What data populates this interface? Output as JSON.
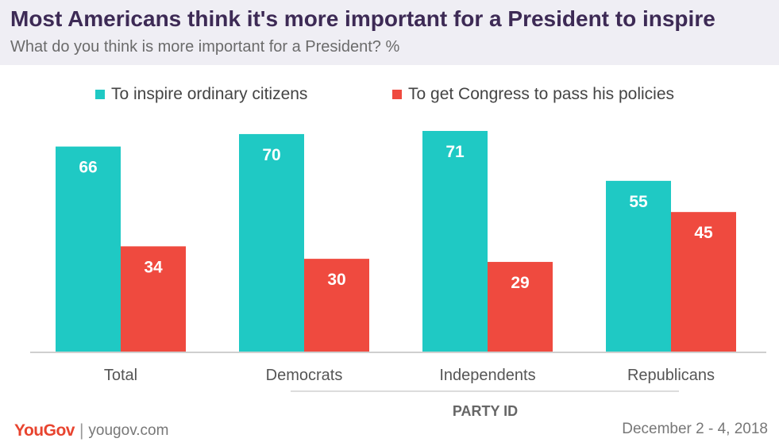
{
  "header": {
    "title": "Most Americans think it's more important for a President to inspire",
    "subtitle": "What do you think is more important for a President? %"
  },
  "legend": [
    {
      "label": "To inspire ordinary citizens",
      "color": "#1fc9c4"
    },
    {
      "label": "To get Congress to pass his policies",
      "color": "#ef4a3f"
    }
  ],
  "chart_data": {
    "type": "bar",
    "categories": [
      "Total",
      "Democrats",
      "Independents",
      "Republicans"
    ],
    "series": [
      {
        "name": "To inspire ordinary citizens",
        "values": [
          66,
          70,
          71,
          55
        ],
        "color": "#1fc9c4"
      },
      {
        "name": "To get Congress to pass his policies",
        "values": [
          34,
          30,
          29,
          45
        ],
        "color": "#ef4a3f"
      }
    ],
    "group_label": "PARTY ID",
    "group_spans": [
      "Democrats",
      "Independents",
      "Republicans"
    ],
    "ylim": [
      0,
      100
    ],
    "grid": false,
    "legend_position": "top"
  },
  "footer": {
    "brand": "YouGov",
    "separator": "|",
    "url": "yougov.com",
    "date": "December 2 - 4, 2018"
  }
}
